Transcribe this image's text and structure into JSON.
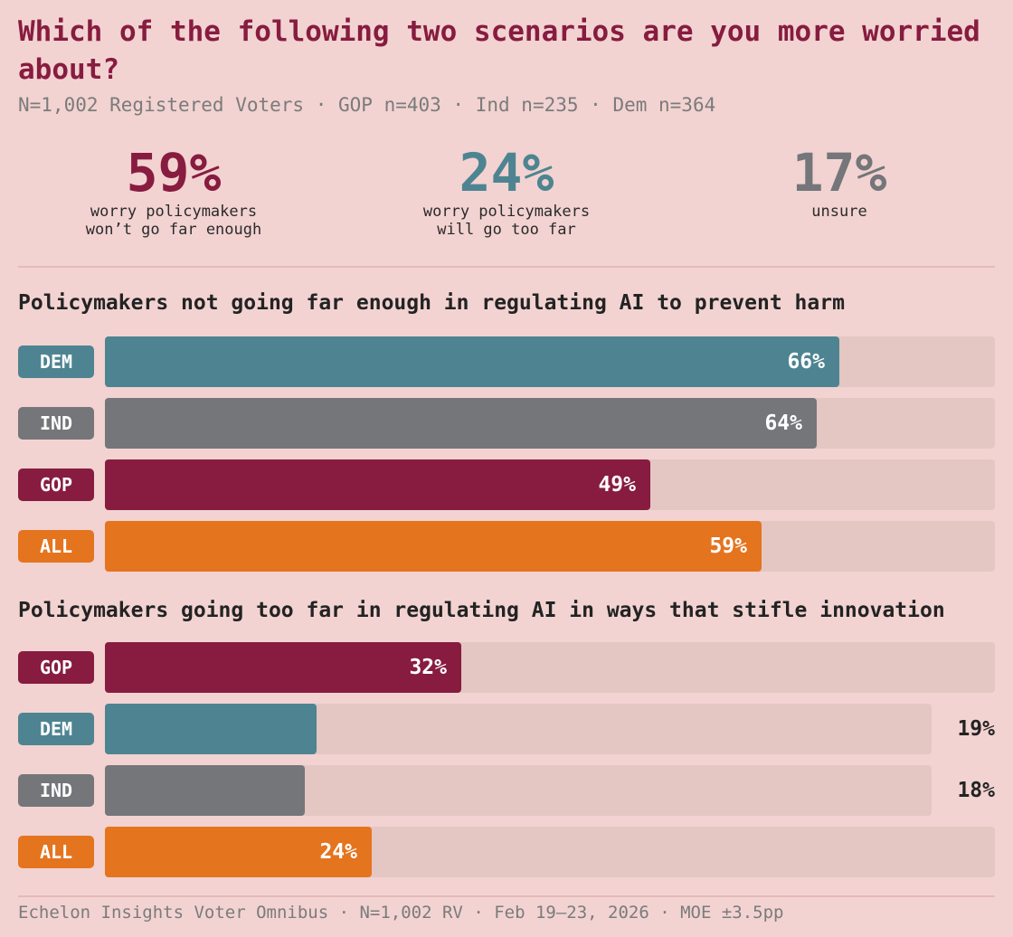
{
  "title": "Which of the following two scenarios are you more worried about?",
  "subtitle": "N=1,002 Registered Voters · GOP n=403 · Ind n=235 · Dem n=364",
  "colors": {
    "DEM": "#4e8491",
    "IND": "#747679",
    "GOP": "#871c40",
    "ALL": "#e5741f"
  },
  "stats": [
    {
      "value": "59%",
      "label": "worry policymakers\nwon’t go far enough",
      "color": "#871c40"
    },
    {
      "value": "24%",
      "label": "worry policymakers\nwill go too far",
      "color": "#4e8491"
    },
    {
      "value": "17%",
      "label": "unsure",
      "color": "#747679"
    }
  ],
  "chart_data": [
    {
      "type": "bar",
      "orientation": "horizontal",
      "title": "Policymakers not going far enough in regulating AI to prevent harm",
      "categories": [
        "DEM",
        "IND",
        "GOP",
        "ALL"
      ],
      "values": [
        66,
        64,
        49,
        59
      ],
      "labels": [
        "66%",
        "64%",
        "49%",
        "59%"
      ],
      "xlim": [
        0,
        80
      ]
    },
    {
      "type": "bar",
      "orientation": "horizontal",
      "title": "Policymakers going too far in regulating AI in ways that stifle innovation",
      "categories": [
        "GOP",
        "DEM",
        "IND",
        "ALL"
      ],
      "values": [
        32,
        19,
        18,
        24
      ],
      "labels": [
        "32%",
        "19%",
        "18%",
        "24%"
      ],
      "xlim": [
        0,
        80
      ]
    }
  ],
  "footer": "Echelon Insights Voter Omnibus · N=1,002 RV · Feb 19–23, 2026 · MOE ±3.5pp"
}
